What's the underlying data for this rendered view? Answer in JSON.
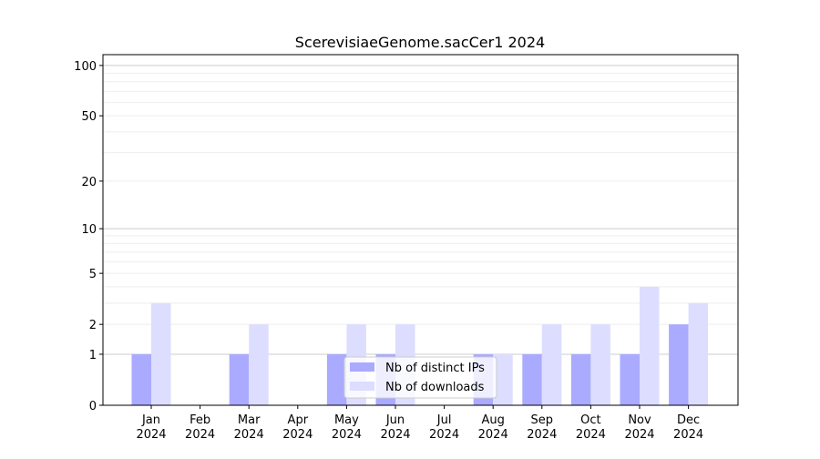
{
  "chart_data": {
    "type": "bar",
    "title": "ScerevisiaeGenome.sacCer1 2024",
    "xlabel": "",
    "ylabel": "",
    "y_scale": "log(1+y)",
    "ylim": [
      0,
      116
    ],
    "y_ticks": [
      0,
      1,
      2,
      5,
      10,
      20,
      50,
      100
    ],
    "grid": true,
    "legend_position": "bottom-center",
    "categories": [
      [
        "Jan",
        "2024"
      ],
      [
        "Feb",
        "2024"
      ],
      [
        "Mar",
        "2024"
      ],
      [
        "Apr",
        "2024"
      ],
      [
        "May",
        "2024"
      ],
      [
        "Jun",
        "2024"
      ],
      [
        "Jul",
        "2024"
      ],
      [
        "Aug",
        "2024"
      ],
      [
        "Sep",
        "2024"
      ],
      [
        "Oct",
        "2024"
      ],
      [
        "Nov",
        "2024"
      ],
      [
        "Dec",
        "2024"
      ]
    ],
    "series": [
      {
        "name": "Nb of distinct IPs",
        "color": "#aaaaff",
        "values": [
          1,
          0,
          1,
          0,
          1,
          1,
          0,
          1,
          1,
          1,
          1,
          2
        ]
      },
      {
        "name": "Nb of downloads",
        "color": "#ddddff",
        "values": [
          3,
          0,
          2,
          0,
          2,
          2,
          0,
          1,
          2,
          2,
          4,
          3
        ]
      }
    ]
  }
}
